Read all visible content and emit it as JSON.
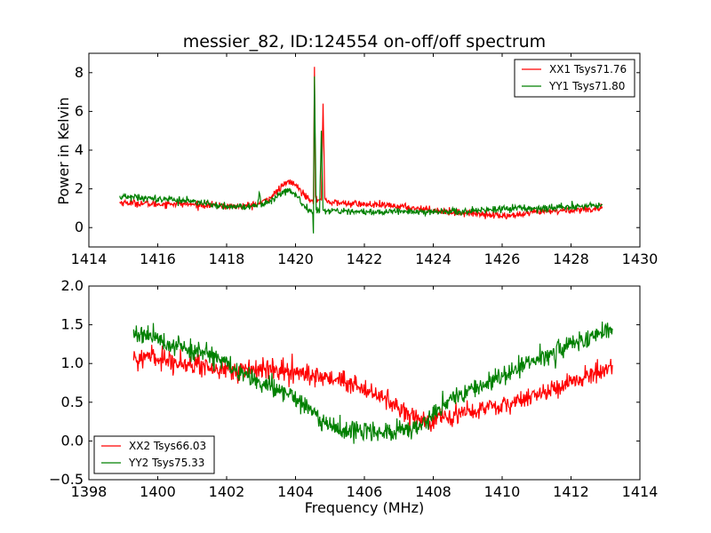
{
  "chart_data": [
    {
      "type": "line",
      "title": "messier_82, ID:124554 on-off/off spectrum",
      "xlabel": "",
      "ylabel": "Power in Kelvin",
      "xlim": [
        1414,
        1430
      ],
      "ylim": [
        -1,
        9
      ],
      "xticks": [
        "1414",
        "1416",
        "1418",
        "1420",
        "1422",
        "1424",
        "1426",
        "1428",
        "1430"
      ],
      "yticks": [
        "0",
        "2",
        "4",
        "6",
        "8"
      ],
      "legend_position": "upper right",
      "series": [
        {
          "name": "XX1 Tsys71.76",
          "color": "#ff0000",
          "x": [
            1414.9,
            1415.5,
            1416.0,
            1416.5,
            1417.0,
            1417.5,
            1418.0,
            1418.5,
            1419.0,
            1419.3,
            1419.6,
            1419.8,
            1420.0,
            1420.2,
            1420.4,
            1420.52,
            1420.55,
            1420.58,
            1420.65,
            1420.75,
            1420.8,
            1420.85,
            1421.0,
            1421.5,
            1422.0,
            1422.5,
            1423.0,
            1423.5,
            1424.0,
            1424.5,
            1425.0,
            1425.5,
            1426.0,
            1426.5,
            1427.0,
            1427.5,
            1428.0,
            1428.5,
            1428.9
          ],
          "y": [
            1.3,
            1.25,
            1.2,
            1.25,
            1.2,
            1.15,
            1.1,
            1.1,
            1.25,
            1.6,
            2.1,
            2.4,
            2.2,
            1.8,
            1.5,
            1.4,
            8.3,
            1.6,
            1.4,
            1.4,
            6.4,
            1.5,
            1.3,
            1.25,
            1.2,
            1.15,
            1.1,
            1.0,
            0.9,
            0.8,
            0.75,
            0.7,
            0.6,
            0.65,
            0.8,
            0.85,
            0.9,
            0.95,
            1.0
          ]
        },
        {
          "name": "YY1 Tsys71.80",
          "color": "#008000",
          "x": [
            1414.9,
            1415.5,
            1416.0,
            1416.5,
            1417.0,
            1417.5,
            1418.0,
            1418.5,
            1418.9,
            1418.95,
            1419.0,
            1419.3,
            1419.6,
            1419.8,
            1420.0,
            1420.2,
            1420.4,
            1420.5,
            1420.52,
            1420.55,
            1420.6,
            1420.7,
            1420.75,
            1420.8,
            1420.9,
            1421.0,
            1421.5,
            1422.0,
            1422.5,
            1423.0,
            1423.5,
            1424.0,
            1424.5,
            1425.0,
            1425.5,
            1426.0,
            1426.5,
            1427.0,
            1427.5,
            1428.0,
            1428.5,
            1428.9
          ],
          "y": [
            1.6,
            1.55,
            1.5,
            1.45,
            1.35,
            1.2,
            1.1,
            1.05,
            1.15,
            1.8,
            1.2,
            1.4,
            1.8,
            2.0,
            1.7,
            1.2,
            0.9,
            0.8,
            -0.3,
            7.8,
            0.9,
            0.8,
            5.0,
            0.9,
            0.8,
            0.85,
            0.85,
            0.85,
            0.8,
            0.85,
            0.8,
            0.85,
            0.8,
            0.85,
            0.9,
            0.95,
            1.0,
            1.0,
            1.05,
            1.05,
            1.1,
            1.15
          ]
        }
      ]
    },
    {
      "type": "line",
      "title": "",
      "xlabel": "Frequency (MHz)",
      "ylabel": "",
      "xlim": [
        1398,
        1414
      ],
      "ylim": [
        -0.5,
        2.0
      ],
      "xticks": [
        "1398",
        "1400",
        "1402",
        "1404",
        "1406",
        "1408",
        "1410",
        "1412",
        "1414"
      ],
      "yticks": [
        "−0.5",
        "0.0",
        "0.5",
        "1.0",
        "1.5",
        "2.0"
      ],
      "legend_position": "lower left",
      "series": [
        {
          "name": "XX2 Tsys66.03",
          "color": "#ff0000",
          "x": [
            1399.3,
            1399.8,
            1400.3,
            1400.8,
            1401.3,
            1401.8,
            1402.3,
            1402.8,
            1403.3,
            1403.8,
            1404.3,
            1404.8,
            1405.3,
            1405.8,
            1406.3,
            1406.8,
            1407.3,
            1407.8,
            1408.3,
            1408.8,
            1409.3,
            1409.8,
            1410.3,
            1410.8,
            1411.3,
            1411.8,
            1412.3,
            1412.8,
            1413.2
          ],
          "y": [
            1.05,
            1.08,
            1.05,
            1.0,
            0.97,
            0.93,
            0.9,
            0.92,
            0.92,
            0.9,
            0.85,
            0.82,
            0.78,
            0.7,
            0.6,
            0.5,
            0.35,
            0.25,
            0.3,
            0.38,
            0.4,
            0.45,
            0.5,
            0.55,
            0.63,
            0.72,
            0.8,
            0.9,
            0.98
          ]
        },
        {
          "name": "YY2 Tsys75.33",
          "color": "#008000",
          "x": [
            1399.3,
            1399.8,
            1400.3,
            1400.8,
            1401.3,
            1401.8,
            1402.3,
            1402.8,
            1403.3,
            1403.8,
            1404.3,
            1404.8,
            1405.3,
            1405.8,
            1406.3,
            1406.8,
            1407.3,
            1407.8,
            1408.3,
            1408.8,
            1409.3,
            1409.8,
            1410.3,
            1410.8,
            1411.3,
            1411.8,
            1412.3,
            1412.8,
            1413.2
          ],
          "y": [
            1.4,
            1.35,
            1.25,
            1.2,
            1.15,
            1.05,
            0.9,
            0.8,
            0.7,
            0.6,
            0.45,
            0.25,
            0.15,
            0.12,
            0.12,
            0.13,
            0.15,
            0.25,
            0.45,
            0.6,
            0.7,
            0.8,
            0.9,
            1.0,
            1.1,
            1.2,
            1.3,
            1.38,
            1.45
          ]
        }
      ]
    }
  ]
}
